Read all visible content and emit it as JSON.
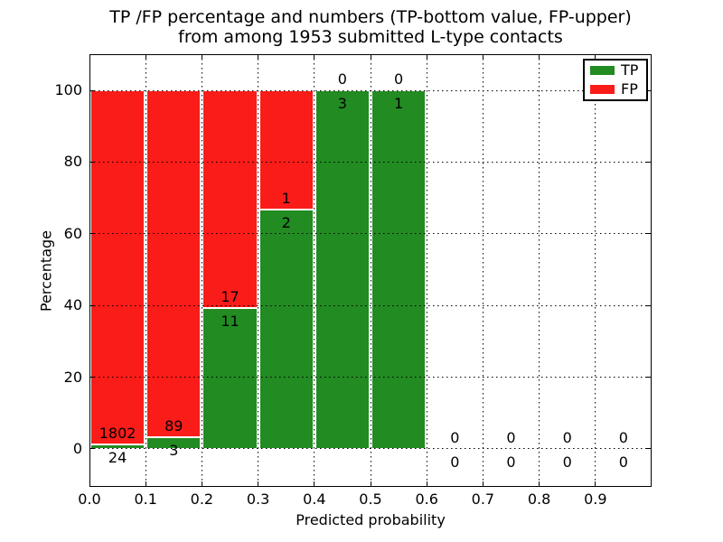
{
  "chart_data": {
    "type": "bar",
    "stacked": true,
    "title_lines": [
      "TP /FP percentage and numbers (TP-bottom value, FP-upper)",
      "from among 1953 submitted L-type contacts"
    ],
    "xlabel": "Predicted probability",
    "ylabel": "Percentage",
    "x_ticks": [
      0.0,
      0.1,
      0.2,
      0.3,
      0.4,
      0.5,
      0.6,
      0.7,
      0.8,
      0.9
    ],
    "x_tick_labels": [
      "0.0",
      "0.1",
      "0.2",
      "0.3",
      "0.4",
      "0.5",
      "0.6",
      "0.7",
      "0.8",
      "0.9"
    ],
    "y_ticks": [
      0,
      20,
      40,
      60,
      80,
      100
    ],
    "xlim": [
      0.0,
      1.0
    ],
    "ylim": [
      -10.6,
      110.1
    ],
    "bin_width": 0.1,
    "grid_style": "dotted",
    "legend_position": "upper right",
    "background": "#ffffff",
    "text_color": "#000000",
    "series": [
      {
        "name": "TP",
        "color": "#228b22",
        "counts": [
          24,
          3,
          11,
          2,
          3,
          1,
          0,
          0,
          0,
          0
        ]
      },
      {
        "name": "FP",
        "color": "#fa1c19",
        "counts": [
          1802,
          89,
          17,
          1,
          0,
          0,
          0,
          0,
          0,
          0
        ]
      }
    ],
    "tp_percentages": [
      1.31,
      3.26,
      39.29,
      66.67,
      100.0,
      100.0,
      0,
      0,
      0,
      0
    ],
    "annotation_note": "TP count shown below segment boundary, FP count shown above segment boundary"
  }
}
